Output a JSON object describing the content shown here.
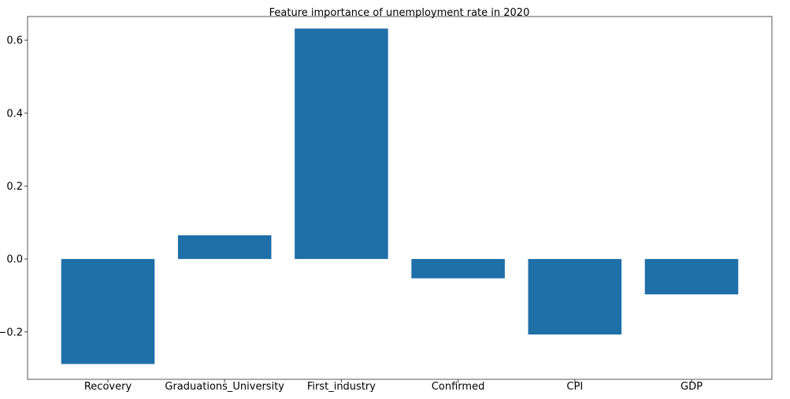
{
  "chart_data": {
    "type": "bar",
    "title": "Feature importance of unemployment rate in 2020",
    "xlabel": "",
    "ylabel": "",
    "categories": [
      "Recovery",
      "Graduations_University",
      "First_industry",
      "Confirmed",
      "CPI",
      "GDP"
    ],
    "values": [
      -0.288,
      0.065,
      0.632,
      -0.053,
      -0.207,
      -0.097
    ],
    "ylim": [
      -0.33,
      0.665
    ],
    "yticks": [
      -0.2,
      0.0,
      0.2,
      0.4,
      0.6
    ],
    "ytick_labels": [
      "−0.2",
      "0.0",
      "0.2",
      "0.4",
      "0.6"
    ],
    "bar_color": "#1f6fa8",
    "grid": false,
    "legend": "none"
  }
}
